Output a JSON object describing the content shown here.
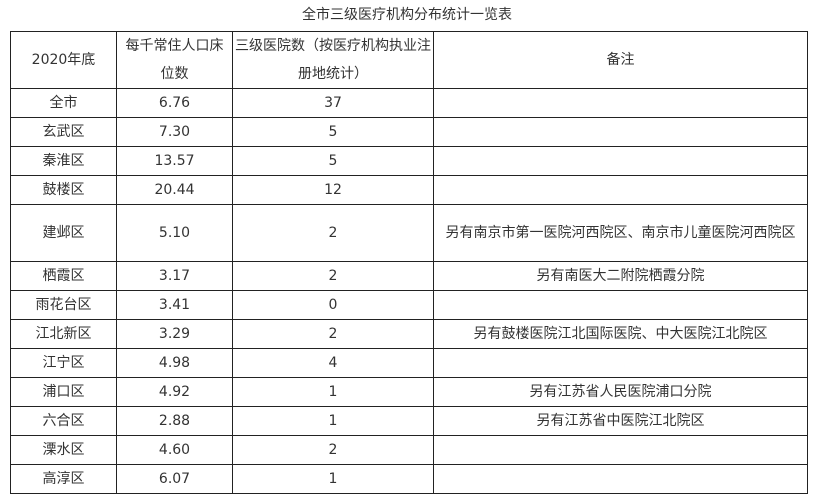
{
  "title": "全市三级医疗机构分布统计一览表",
  "headers": [
    "2020年底",
    "每千常住人口床位数",
    "三级医院数（按医疗机构执业注册地统计）",
    "备注"
  ],
  "rows": [
    [
      "全市",
      "6.76",
      "37",
      ""
    ],
    [
      "玄武区",
      "7.30",
      "5",
      ""
    ],
    [
      "秦淮区",
      "13.57",
      "5",
      ""
    ],
    [
      "鼓楼区",
      "20.44",
      "12",
      ""
    ],
    [
      "建邺区",
      "5.10",
      "2",
      "另有南京市第一医院河西院区、南京市儿童医院河西院区"
    ],
    [
      "栖霞区",
      "3.17",
      "2",
      "另有南医大二附院栖霞分院"
    ],
    [
      "雨花台区",
      "3.41",
      "0",
      ""
    ],
    [
      "江北新区",
      "3.29",
      "2",
      "另有鼓楼医院江北国际医院、中大医院江北院区"
    ],
    [
      "江宁区",
      "4.98",
      "4",
      ""
    ],
    [
      "浦口区",
      "4.92",
      "1",
      "另有江苏省人民医院浦口分院"
    ],
    [
      "六合区",
      "2.88",
      "1",
      "另有江苏省中医院江北院区"
    ],
    [
      "溧水区",
      "4.60",
      "2",
      ""
    ],
    [
      "高淳区",
      "6.07",
      "1",
      ""
    ]
  ]
}
